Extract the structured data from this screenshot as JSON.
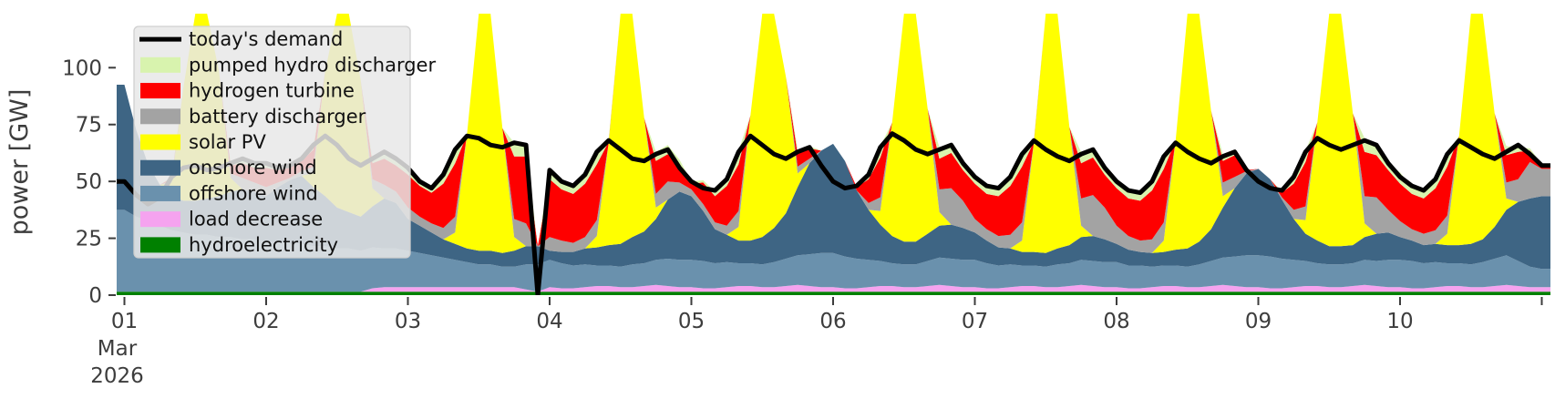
{
  "figure": {
    "kind": "stacked-area-power-dispatch",
    "background": "#ffffff"
  },
  "y_axis": {
    "label": "power [GW]",
    "ticks": [
      0,
      25,
      50,
      75,
      100
    ],
    "min": 0,
    "max": 123.6,
    "tick_color": "#3d3d3d"
  },
  "x_axis": {
    "tick_labels": [
      "01",
      "02",
      "03",
      "04",
      "05",
      "06",
      "07",
      "08",
      "09",
      "10"
    ],
    "month_label": "Mar",
    "year_label": "2026",
    "extra_end_tick": true,
    "tick_color": "#3d3d3d"
  },
  "legend": {
    "background": "#e8e8e8",
    "border_color": "#cfcfcf",
    "entries": [
      {
        "label": "today's demand",
        "color": "#000000",
        "type": "line"
      },
      {
        "label": "pumped hydro discharger",
        "color": "#d8f3ae",
        "type": "patch"
      },
      {
        "label": "hydrogen turbine",
        "color": "#fe0000",
        "type": "patch"
      },
      {
        "label": "battery discharger",
        "color": "#a3a3a3",
        "type": "patch"
      },
      {
        "label": "solar PV",
        "color": "#ffff00",
        "type": "patch"
      },
      {
        "label": "onshore wind",
        "color": "#3e6584",
        "type": "patch"
      },
      {
        "label": "offshore wind",
        "color": "#6a91ad",
        "type": "patch"
      },
      {
        "label": "load decrease",
        "color": "#f5a3ef",
        "type": "patch"
      },
      {
        "label": "hydroelectricity",
        "color": "#008000",
        "type": "patch"
      }
    ]
  },
  "chart_data": {
    "type": "area",
    "stacked": true,
    "x_unit": "days since 2026-03-01 00:00",
    "x_step_hours": 2,
    "x_range_days": [
      0,
      10
    ],
    "ylim": [
      0,
      123.6
    ],
    "grid": false,
    "legend_position": "upper left",
    "note": "values in GW, sampled every 2 h; stack order bottom to top",
    "series": [
      {
        "name": "hydroelectricity",
        "color": "#008000",
        "values": [
          1.5,
          1.5,
          1.5,
          1.5,
          1.5,
          1.5,
          1.5,
          1.5,
          1.5,
          1.5,
          1.5,
          1.5,
          1.5,
          1.5,
          1.5,
          1.5,
          1.5,
          1.5,
          1.5,
          1.5,
          1.5,
          1.5,
          1.5,
          1.5,
          1.5,
          1.5,
          1.5,
          1.5,
          1.5,
          1.5,
          1.5,
          1.5,
          1.5,
          1.5,
          1.5,
          1.5,
          1.5,
          1.5,
          1.5,
          1.5,
          1.5,
          1.5,
          1.5,
          1.5,
          1.5,
          1.5,
          1.5,
          1.5,
          1.5,
          1.5,
          1.5,
          1.5,
          1.5,
          1.5,
          1.5,
          1.5,
          1.5,
          1.5,
          1.5,
          1.5,
          1.5,
          1.5,
          1.5,
          1.5,
          1.5,
          1.5,
          1.5,
          1.5,
          1.5,
          1.5,
          1.5,
          1.5,
          1.5,
          1.5,
          1.5,
          1.5,
          1.5,
          1.5,
          1.5,
          1.5,
          1.5,
          1.5,
          1.5,
          1.5,
          1.5,
          1.5,
          1.5,
          1.5,
          1.5,
          1.5,
          1.5,
          1.5,
          1.5,
          1.5,
          1.5,
          1.5,
          1.5,
          1.5,
          1.5,
          1.5,
          1.5,
          1.5,
          1.5,
          1.5,
          1.5,
          1.5,
          1.5,
          1.5,
          1.5,
          1.5,
          1.5,
          1.5,
          1.5,
          1.5,
          1.5,
          1.5,
          1.5,
          1.5,
          1.5,
          1.5,
          1.5
        ]
      },
      {
        "name": "load decrease",
        "color": "#f5a3ef",
        "values": [
          0,
          0,
          0,
          0,
          0,
          0,
          0,
          0,
          0,
          0,
          0,
          0,
          0,
          0,
          0,
          0,
          0,
          0,
          0,
          0,
          0,
          1.5,
          2,
          2,
          2,
          2,
          2,
          2,
          2,
          2,
          2,
          2,
          2,
          2,
          1,
          0,
          2,
          1.5,
          1.5,
          2,
          2.5,
          2.5,
          2,
          2,
          2.5,
          3,
          2.5,
          2,
          2,
          1.5,
          1.5,
          2,
          2.5,
          2.5,
          2,
          2,
          2.5,
          3,
          2.5,
          2,
          2,
          1.5,
          1.5,
          2,
          2.5,
          2.5,
          2,
          2,
          2.5,
          3,
          2.5,
          2,
          2,
          1.5,
          1.5,
          2,
          2.5,
          2.5,
          2,
          2,
          2.5,
          3,
          2.5,
          2,
          2,
          1.5,
          1.5,
          2,
          2.5,
          2.5,
          2,
          2,
          2.5,
          3,
          2.5,
          2,
          2,
          1.5,
          1.5,
          2,
          2.5,
          2.5,
          2,
          2,
          2.5,
          3,
          2.5,
          2,
          2,
          1.5,
          1.5,
          2,
          2.5,
          2.5,
          2,
          2,
          2.5,
          3,
          2.5,
          2,
          2
        ]
      },
      {
        "name": "offshore wind",
        "color": "#6a91ad",
        "values": [
          36,
          33,
          31,
          29,
          27,
          26,
          25,
          25,
          24,
          24,
          23,
          23,
          22,
          22,
          21,
          21,
          20,
          20,
          19,
          19,
          18,
          18,
          17,
          17,
          16,
          15,
          14,
          13,
          12,
          11,
          10,
          10,
          9,
          9,
          11,
          12,
          12,
          11,
          10,
          10,
          9,
          9,
          9,
          10,
          10,
          11,
          12,
          12,
          12,
          12,
          11,
          11,
          10,
          10,
          10,
          11,
          12,
          13,
          14,
          15,
          15,
          14,
          13,
          12,
          11,
          10,
          10,
          10,
          11,
          12,
          12,
          12,
          12,
          11,
          10,
          10,
          9,
          9,
          9,
          10,
          10,
          11,
          11,
          11,
          11,
          10,
          10,
          9,
          9,
          9,
          9,
          10,
          11,
          12,
          13,
          14,
          14,
          14,
          13,
          12,
          11,
          10,
          10,
          10,
          10,
          11,
          11,
          12,
          12,
          12,
          11,
          11,
          10,
          10,
          10,
          11,
          12,
          13,
          11,
          9,
          8
        ]
      },
      {
        "name": "onshore wind",
        "color": "#3e6584",
        "values": [
          55,
          38,
          25,
          18,
          15,
          14,
          15,
          16,
          18,
          20,
          22,
          21,
          20,
          24,
          28,
          30,
          26,
          22,
          18,
          16,
          15,
          18,
          22,
          20,
          14,
          12,
          10,
          8,
          7,
          6,
          6,
          6,
          6,
          7,
          8,
          8,
          4,
          5,
          6,
          7,
          8,
          9,
          10,
          12,
          14,
          18,
          26,
          30,
          28,
          22,
          15,
          12,
          10,
          10,
          12,
          15,
          20,
          30,
          40,
          45,
          48,
          42,
          30,
          22,
          16,
          12,
          10,
          10,
          12,
          14,
          15,
          14,
          12,
          10,
          8,
          7,
          6,
          6,
          6,
          7,
          8,
          10,
          11,
          10,
          8,
          7,
          6,
          6,
          6,
          7,
          8,
          10,
          14,
          22,
          30,
          36,
          38,
          34,
          26,
          18,
          12,
          10,
          8,
          8,
          8,
          10,
          12,
          12,
          10,
          9,
          8,
          8,
          8,
          8,
          9,
          10,
          14,
          20,
          26,
          30,
          32
        ]
      },
      {
        "name": "solar PV",
        "color": "#ffff00",
        "values": [
          0,
          0,
          0,
          0,
          6,
          50,
          112,
          126,
          55,
          6,
          0,
          0,
          0,
          0,
          0,
          0,
          6,
          55,
          115,
          126,
          60,
          8,
          0,
          0,
          0,
          0,
          0,
          0,
          5,
          50,
          110,
          117,
          55,
          6,
          0,
          0,
          0,
          0,
          0,
          0,
          5,
          45,
          105,
          116,
          50,
          5,
          0,
          0,
          0,
          0,
          0,
          0,
          6,
          55,
          115,
          127,
          60,
          6,
          0,
          0,
          0,
          0,
          0,
          0,
          6,
          50,
          112,
          119,
          55,
          6,
          0,
          0,
          0,
          0,
          0,
          0,
          5,
          48,
          108,
          112,
          52,
          5,
          0,
          0,
          0,
          0,
          0,
          0,
          5,
          48,
          108,
          113,
          52,
          5,
          0,
          0,
          0,
          0,
          0,
          0,
          6,
          52,
          114,
          121,
          58,
          6,
          0,
          0,
          0,
          0,
          0,
          0,
          5,
          48,
          106,
          111,
          50,
          5,
          0,
          0,
          0
        ]
      },
      {
        "name": "battery discharger",
        "color": "#a3a3a3",
        "values": [
          0,
          0,
          0,
          0,
          1,
          0,
          0,
          0,
          0,
          2,
          5,
          4,
          4,
          2,
          1,
          2,
          3,
          0,
          0,
          0,
          0,
          4,
          6,
          5,
          5,
          4,
          4,
          5,
          7,
          0,
          0,
          0,
          0,
          8,
          10,
          0,
          6,
          5,
          4,
          5,
          7,
          0,
          0,
          0,
          0,
          6,
          8,
          4,
          3,
          3,
          3,
          4,
          7,
          0,
          0,
          0,
          0,
          3,
          2,
          0,
          0,
          0,
          0,
          3,
          6,
          0,
          0,
          0,
          0,
          10,
          16,
          12,
          6,
          5,
          5,
          6,
          8,
          0,
          0,
          0,
          0,
          12,
          18,
          14,
          8,
          6,
          5,
          6,
          8,
          0,
          0,
          0,
          0,
          6,
          5,
          1,
          0,
          0,
          1,
          4,
          6,
          0,
          0,
          0,
          0,
          12,
          16,
          10,
          7,
          5,
          5,
          6,
          8,
          0,
          0,
          0,
          0,
          7,
          10,
          16,
          12
        ]
      },
      {
        "name": "hydrogen turbine",
        "color": "#fe0000",
        "values": [
          0,
          0,
          0,
          0,
          1,
          0,
          0,
          0,
          0,
          3.5,
          6.5,
          6.5,
          8.5,
          5.5,
          4.5,
          4.5,
          7.5,
          0,
          0,
          0,
          0,
          7,
          11.5,
          11.5,
          14.5,
          13.5,
          13.5,
          19.5,
          23.5,
          0,
          0,
          0,
          0,
          27.5,
          29.5,
          0,
          25.5,
          22.5,
          21.5,
          23.5,
          24.5,
          0.5,
          0,
          0,
          0,
          14.5,
          12,
          8,
          2.5,
          9.5,
          11.5,
          17.5,
          20.5,
          0,
          0,
          0,
          0,
          5.5,
          4.5,
          0,
          0,
          0,
          1.5,
          10.5,
          17.5,
          0,
          0,
          0,
          0,
          13.5,
          15.5,
          13.5,
          15.5,
          15.5,
          17.5,
          21.5,
          24.5,
          0.5,
          0,
          0,
          0,
          15.5,
          16.5,
          14.5,
          16.5,
          16.5,
          17.5,
          21.5,
          23.5,
          0,
          0,
          0,
          0,
          9.5,
          9.5,
          0.5,
          0,
          0,
          2,
          11.5,
          19.5,
          0,
          0,
          0,
          0,
          19.5,
          18.5,
          17.5,
          16.5,
          15.5,
          15.5,
          18.5,
          21.5,
          0,
          0,
          0,
          0,
          12,
          12,
          5,
          2
        ]
      },
      {
        "name": "pumped hydro discharger",
        "color": "#d8f3ae",
        "values": [
          0,
          0,
          0,
          0,
          0.5,
          0,
          0,
          0,
          0,
          1,
          2,
          2,
          2,
          1,
          1,
          1,
          2,
          0,
          0,
          0,
          0,
          2,
          3,
          3,
          3,
          2,
          2,
          4,
          6,
          0,
          0,
          0,
          0,
          6,
          5,
          0,
          4,
          3,
          3,
          4,
          6,
          1,
          0,
          0,
          0,
          4,
          4,
          2,
          1,
          1,
          2,
          3,
          6,
          0,
          0,
          0,
          0,
          2,
          1,
          0,
          0,
          0,
          0,
          2,
          5,
          0,
          0,
          0,
          0,
          5,
          4,
          3,
          3,
          3,
          3,
          4,
          6,
          1,
          0,
          0,
          0,
          5,
          4,
          3,
          3,
          3,
          3,
          4,
          6,
          0,
          0,
          0,
          0,
          3,
          2,
          0,
          0,
          0,
          0.5,
          3,
          5,
          0,
          0,
          0,
          0,
          6,
          5,
          3,
          5,
          3,
          3,
          4,
          6,
          0,
          0,
          0,
          0,
          4,
          2,
          1,
          0
        ]
      }
    ],
    "demand_line": {
      "name": "today's demand",
      "color": "#000000",
      "width": 5,
      "values": [
        50,
        44,
        40,
        43,
        52,
        56,
        57,
        55,
        56,
        58,
        60,
        58,
        58,
        56,
        57,
        60,
        66,
        70,
        66,
        60,
        57,
        60,
        63,
        60,
        56,
        50,
        47,
        53,
        64,
        70,
        69,
        66,
        65,
        67,
        66,
        0,
        55,
        50,
        48,
        53,
        63,
        68,
        64,
        60,
        59,
        62,
        64,
        56,
        50,
        47,
        46,
        51,
        63,
        70,
        66,
        62,
        60,
        63,
        65,
        57,
        50,
        47,
        48,
        53,
        65,
        71,
        68,
        64,
        62,
        64,
        66,
        58,
        52,
        48,
        47,
        52,
        62,
        68,
        64,
        61,
        59,
        62,
        64,
        56,
        50,
        46,
        45,
        50,
        61,
        67,
        63,
        60,
        58,
        61,
        63,
        55,
        50,
        47,
        46,
        52,
        63,
        69,
        66,
        64,
        66,
        68,
        66,
        58,
        52,
        48,
        46,
        51,
        62,
        68,
        65,
        62,
        60,
        63,
        66,
        62,
        57
      ]
    }
  }
}
